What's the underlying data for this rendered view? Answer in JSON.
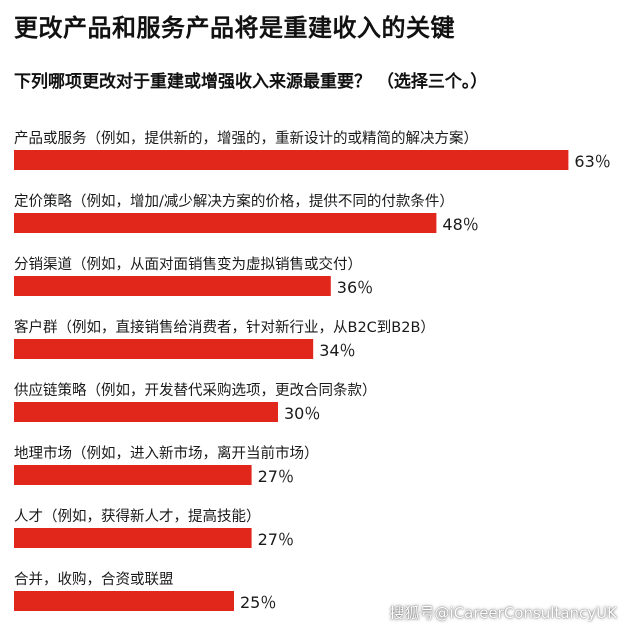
{
  "title": "更改产品和服务产品将是重建收入的关键",
  "subtitle": "下列哪项更改对于重建或增强收入来源最重要？ （选择三个。）",
  "watermark": "搜狐号@iCareerConsultancyUK",
  "colors": {
    "bar": "#e1261c",
    "text": "#1a1a1a",
    "background": "#ffffff"
  },
  "chart_data": {
    "type": "bar",
    "orientation": "horizontal",
    "title": "更改产品和服务产品将是重建收入的关键",
    "subtitle": "下列哪项更改对于重建或增强收入来源最重要？ （选择三个。）",
    "unit": "%",
    "xlim": [
      0,
      100
    ],
    "grid": false,
    "legend": "none",
    "categories": [
      "产品或服务（例如，提供新的，增强的，重新设计的或精简的解决方案）",
      "定价策略（例如，增加/减少解决方案的价格，提供不同的付款条件）",
      "分销渠道（例如，从面对面销售变为虚拟销售或交付）",
      "客户群（例如，直接销售给消费者，针对新行业，从B2C到B2B）",
      "供应链策略（例如，开发替代采购选项，更改合同条款）",
      "地理市场（例如，进入新市场，离开当前市场）",
      "人才（例如，获得新人才，提高技能）",
      "合并，收购，合资或联盟"
    ],
    "values": [
      63,
      48,
      36,
      34,
      30,
      27,
      27,
      25
    ],
    "value_labels": [
      "63％",
      "48％",
      "36％",
      "34％",
      "30％",
      "27％",
      "27％",
      "25％"
    ]
  }
}
